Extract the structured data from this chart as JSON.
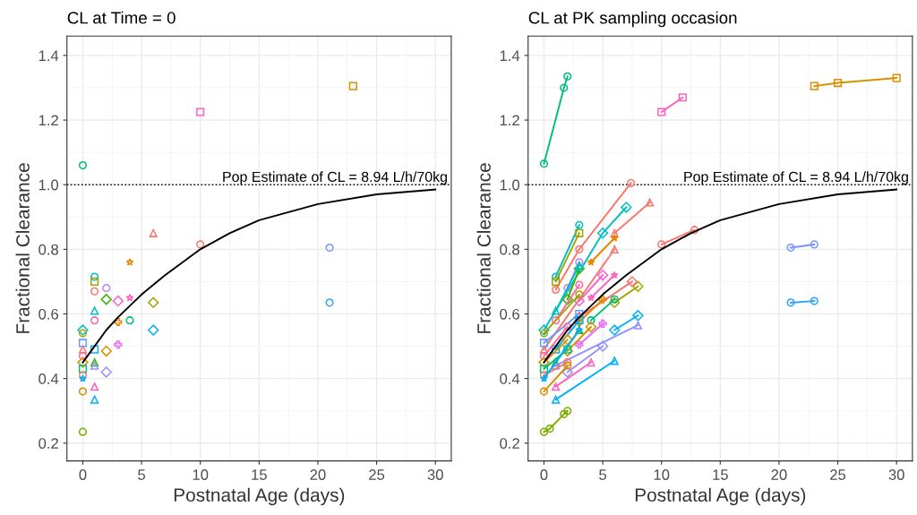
{
  "chart_data": [
    {
      "type": "scatter",
      "title": "CL at Time = 0",
      "xlabel": "Postnatal Age (days)",
      "ylabel": "Fractional Clearance",
      "xlim": [
        -1.35,
        31.35
      ],
      "ylim": [
        0.145,
        1.46
      ],
      "xticks": [
        0,
        5,
        10,
        15,
        20,
        25,
        30
      ],
      "yticks": [
        {
          "value": 0.2,
          "label": "0.2"
        },
        {
          "value": 0.4,
          "label": "0.4"
        },
        {
          "value": 0.6,
          "label": "0.6"
        },
        {
          "value": 0.8,
          "label": "0.8"
        },
        {
          "value": 1.0,
          "label": "1.0"
        },
        {
          "value": 1.2,
          "label": "1.2"
        },
        {
          "value": 1.4,
          "label": "1.4"
        }
      ],
      "grid": true,
      "legend": false,
      "ref_lines": [
        {
          "axis": "y",
          "value": 1.0,
          "color": "#000000",
          "line_style": "dotted"
        }
      ],
      "annotations": [
        "Pop Estimate of CL = 8.94 L/h/70kg"
      ],
      "series": [
        {
          "type": "line",
          "color": "#000000",
          "marker": "none",
          "line_style": "solid",
          "x": [
            0,
            1,
            2,
            3,
            5,
            7,
            10,
            12.5,
            15,
            20,
            25,
            30
          ],
          "values": [
            0.45,
            0.5,
            0.55,
            0.59,
            0.66,
            0.72,
            0.8,
            0.85,
            0.89,
            0.94,
            0.97,
            0.985
          ]
        },
        {
          "color": "#00BF7D",
          "marker": "circle",
          "x": [
            0
          ],
          "values": [
            1.06
          ]
        },
        {
          "color": "#D89000",
          "marker": "square",
          "x": [
            23
          ],
          "values": [
            1.305
          ]
        },
        {
          "color": "#FF62BC",
          "marker": "square",
          "x": [
            10
          ],
          "values": [
            1.225
          ]
        },
        {
          "color": "#F8766D",
          "marker": "triangle",
          "x": [
            6
          ],
          "values": [
            0.85
          ]
        },
        {
          "color": "#F8766D",
          "marker": "circle",
          "x": [
            10
          ],
          "values": [
            0.815
          ]
        },
        {
          "color": "#7997FF",
          "marker": "circle",
          "x": [
            21
          ],
          "values": [
            0.805
          ]
        },
        {
          "color": "#35A2FF",
          "marker": "circle",
          "x": [
            21
          ],
          "values": [
            0.635
          ]
        },
        {
          "color": "#E58700",
          "marker": "star",
          "x": [
            4
          ],
          "values": [
            0.76
          ]
        },
        {
          "color": "#00BFC4",
          "marker": "circle",
          "x": [
            1
          ],
          "values": [
            0.715
          ]
        },
        {
          "color": "#A3A500",
          "marker": "square",
          "x": [
            1
          ],
          "values": [
            0.7
          ]
        },
        {
          "color": "#F8766D",
          "marker": "circle",
          "x": [
            1
          ],
          "values": [
            0.67
          ]
        },
        {
          "color": "#B983FF",
          "marker": "circle",
          "x": [
            2
          ],
          "values": [
            0.68
          ]
        },
        {
          "color": "#39B600",
          "marker": "diamond",
          "x": [
            2
          ],
          "values": [
            0.645
          ]
        },
        {
          "color": "#FF61C3",
          "marker": "star",
          "x": [
            4
          ],
          "values": [
            0.65
          ]
        },
        {
          "color": "#FB61D7",
          "marker": "diamond",
          "x": [
            3
          ],
          "values": [
            0.64
          ]
        },
        {
          "color": "#A3A500",
          "marker": "diamond",
          "x": [
            6
          ],
          "values": [
            0.635
          ]
        },
        {
          "color": "#00BFC4",
          "marker": "triangle",
          "x": [
            1
          ],
          "values": [
            0.61
          ]
        },
        {
          "color": "#FF67A4",
          "marker": "circle",
          "x": [
            1
          ],
          "values": [
            0.58
          ]
        },
        {
          "color": "#00BF7D",
          "marker": "circle",
          "x": [
            4
          ],
          "values": [
            0.58
          ]
        },
        {
          "color": "#E58700",
          "marker": "cross",
          "x": [
            3
          ],
          "values": [
            0.575
          ]
        },
        {
          "color": "#00B0F6",
          "marker": "diamond",
          "x": [
            6
          ],
          "values": [
            0.55
          ]
        },
        {
          "color": "#00BFC4",
          "marker": "diamond",
          "x": [
            0
          ],
          "values": [
            0.55
          ]
        },
        {
          "color": "#A3A500",
          "marker": "circle",
          "x": [
            0
          ],
          "values": [
            0.54
          ]
        },
        {
          "color": "#E76BF3",
          "marker": "cross",
          "x": [
            3
          ],
          "values": [
            0.505
          ]
        },
        {
          "color": "#619CFF",
          "marker": "square",
          "x": [
            0
          ],
          "values": [
            0.51
          ]
        },
        {
          "color": "#F8766D",
          "marker": "triangle",
          "x": [
            0
          ],
          "values": [
            0.49
          ]
        },
        {
          "color": "#00B0F6",
          "marker": "square",
          "x": [
            1
          ],
          "values": [
            0.49
          ]
        },
        {
          "color": "#D89000",
          "marker": "diamond",
          "x": [
            2
          ],
          "values": [
            0.485
          ]
        },
        {
          "color": "#FF67A4",
          "marker": "circle",
          "x": [
            0
          ],
          "values": [
            0.47
          ]
        },
        {
          "color": "#D89000",
          "marker": "diamond",
          "x": [
            0
          ],
          "values": [
            0.45
          ]
        },
        {
          "color": "#39B600",
          "marker": "triangle",
          "x": [
            1
          ],
          "values": [
            0.45
          ]
        },
        {
          "color": "#9590FF",
          "marker": "triangle",
          "x": [
            1
          ],
          "values": [
            0.44
          ]
        },
        {
          "color": "#9590FF",
          "marker": "diamond",
          "x": [
            2
          ],
          "values": [
            0.42
          ]
        },
        {
          "color": "#00BF7D",
          "marker": "square",
          "x": [
            0
          ],
          "values": [
            0.43
          ]
        },
        {
          "color": "#F8766D",
          "marker": "circle",
          "x": [
            0
          ],
          "values": [
            0.41
          ]
        },
        {
          "color": "#00B0F6",
          "marker": "star",
          "x": [
            0
          ],
          "values": [
            0.4
          ]
        },
        {
          "color": "#FF62BC",
          "marker": "triangle",
          "x": [
            1
          ],
          "values": [
            0.375
          ]
        },
        {
          "color": "#D89000",
          "marker": "circle",
          "x": [
            0
          ],
          "values": [
            0.36
          ]
        },
        {
          "color": "#00B0F6",
          "marker": "triangle",
          "x": [
            1
          ],
          "values": [
            0.335
          ]
        },
        {
          "color": "#7CAE00",
          "marker": "circle",
          "x": [
            0
          ],
          "values": [
            0.235
          ]
        }
      ]
    },
    {
      "type": "line",
      "title": "CL at PK sampling occasion",
      "xlabel": "Postnatal Age (days)",
      "ylabel": "Fractional Clearance",
      "xlim": [
        -1.35,
        31.35
      ],
      "ylim": [
        0.145,
        1.46
      ],
      "xticks": [
        0,
        5,
        10,
        15,
        20,
        25,
        30
      ],
      "yticks": [
        {
          "value": 0.2,
          "label": "0.2"
        },
        {
          "value": 0.4,
          "label": "0.4"
        },
        {
          "value": 0.6,
          "label": "0.6"
        },
        {
          "value": 0.8,
          "label": "0.8"
        },
        {
          "value": 1.0,
          "label": "1.0"
        },
        {
          "value": 1.2,
          "label": "1.2"
        },
        {
          "value": 1.4,
          "label": "1.4"
        }
      ],
      "grid": true,
      "legend": false,
      "ref_lines": [
        {
          "axis": "y",
          "value": 1.0,
          "color": "#000000",
          "line_style": "dotted"
        }
      ],
      "annotations": [
        "Pop Estimate of CL = 8.94 L/h/70kg"
      ],
      "series": [
        {
          "color": "#00BF7D",
          "marker": "circle",
          "x": [
            0,
            1.7,
            2
          ],
          "values": [
            1.065,
            1.3,
            1.335
          ]
        },
        {
          "color": "#FF62BC",
          "marker": "square",
          "x": [
            10,
            11.8
          ],
          "values": [
            1.225,
            1.27
          ]
        },
        {
          "color": "#D89000",
          "marker": "square",
          "x": [
            23,
            25,
            30
          ],
          "values": [
            1.305,
            1.315,
            1.33
          ]
        },
        {
          "color": "#F8766D",
          "marker": "circle",
          "x": [
            1,
            3,
            7.4
          ],
          "values": [
            0.675,
            0.8,
            1.005
          ]
        },
        {
          "color": "#F8766D",
          "marker": "triangle",
          "x": [
            6,
            9
          ],
          "values": [
            0.85,
            0.945
          ]
        },
        {
          "color": "#F8766D",
          "marker": "circle",
          "x": [
            10,
            12.8
          ],
          "values": [
            0.815,
            0.86
          ]
        },
        {
          "color": "#7997FF",
          "marker": "circle",
          "x": [
            21,
            23
          ],
          "values": [
            0.805,
            0.815
          ]
        },
        {
          "color": "#35A2FF",
          "marker": "circle",
          "x": [
            21,
            23
          ],
          "values": [
            0.635,
            0.64
          ]
        },
        {
          "color": "#00BFC4",
          "marker": "circle",
          "x": [
            1,
            3
          ],
          "values": [
            0.715,
            0.875
          ]
        },
        {
          "color": "#A3A500",
          "marker": "square",
          "x": [
            1,
            3
          ],
          "values": [
            0.7,
            0.85
          ]
        },
        {
          "color": "#00BFC4",
          "marker": "diamond",
          "x": [
            0,
            5,
            7
          ],
          "values": [
            0.55,
            0.85,
            0.93
          ]
        },
        {
          "color": "#E58700",
          "marker": "star",
          "x": [
            4,
            6
          ],
          "values": [
            0.76,
            0.835
          ]
        },
        {
          "color": "#B983FF",
          "marker": "circle",
          "x": [
            2,
            3
          ],
          "values": [
            0.68,
            0.76
          ]
        },
        {
          "color": "#39B600",
          "marker": "diamond",
          "x": [
            2,
            3
          ],
          "values": [
            0.645,
            0.74
          ]
        },
        {
          "color": "#FF61C3",
          "marker": "star",
          "x": [
            4,
            6
          ],
          "values": [
            0.65,
            0.72
          ]
        },
        {
          "color": "#FB61D7",
          "marker": "diamond",
          "x": [
            3,
            5
          ],
          "values": [
            0.64,
            0.72
          ]
        },
        {
          "color": "#A3A500",
          "marker": "diamond",
          "x": [
            6,
            8
          ],
          "values": [
            0.635,
            0.685
          ]
        },
        {
          "color": "#F8766D",
          "marker": "diamond",
          "x": [
            3,
            7.5
          ],
          "values": [
            0.59,
            0.7
          ]
        },
        {
          "color": "#F8766D",
          "marker": "triangle",
          "x": [
            0,
            6
          ],
          "values": [
            0.49,
            0.8
          ]
        },
        {
          "color": "#00BFC4",
          "marker": "triangle",
          "x": [
            1,
            3
          ],
          "values": [
            0.61,
            0.75
          ]
        },
        {
          "color": "#FF67A4",
          "marker": "circle",
          "x": [
            1,
            3
          ],
          "values": [
            0.58,
            0.69
          ]
        },
        {
          "color": "#00BF7D",
          "marker": "circle",
          "x": [
            4,
            6
          ],
          "values": [
            0.58,
            0.645
          ]
        },
        {
          "color": "#E58700",
          "marker": "cross",
          "x": [
            3,
            5
          ],
          "values": [
            0.575,
            0.645
          ]
        },
        {
          "color": "#00B0F6",
          "marker": "diamond",
          "x": [
            6,
            8
          ],
          "values": [
            0.55,
            0.595
          ]
        },
        {
          "color": "#E76BF3",
          "marker": "cross",
          "x": [
            3,
            5
          ],
          "values": [
            0.505,
            0.57
          ]
        },
        {
          "color": "#A3A500",
          "marker": "circle",
          "x": [
            0,
            3
          ],
          "values": [
            0.54,
            0.66
          ]
        },
        {
          "color": "#619CFF",
          "marker": "square",
          "x": [
            0,
            3
          ],
          "values": [
            0.51,
            0.6
          ]
        },
        {
          "color": "#00B0F6",
          "marker": "square",
          "x": [
            1,
            3
          ],
          "values": [
            0.49,
            0.58
          ]
        },
        {
          "color": "#D89000",
          "marker": "diamond",
          "x": [
            2,
            4
          ],
          "values": [
            0.485,
            0.56
          ]
        },
        {
          "color": "#FF67A4",
          "marker": "circle",
          "x": [
            0,
            2
          ],
          "values": [
            0.47,
            0.56
          ]
        },
        {
          "color": "#D89000",
          "marker": "diamond",
          "x": [
            0,
            2
          ],
          "values": [
            0.45,
            0.52
          ]
        },
        {
          "color": "#39B600",
          "marker": "triangle",
          "x": [
            1,
            3
          ],
          "values": [
            0.45,
            0.55
          ]
        },
        {
          "color": "#9590FF",
          "marker": "triangle",
          "x": [
            1,
            8
          ],
          "values": [
            0.44,
            0.565
          ]
        },
        {
          "color": "#9590FF",
          "marker": "diamond",
          "x": [
            2,
            5
          ],
          "values": [
            0.42,
            0.5
          ]
        },
        {
          "color": "#00BF7D",
          "marker": "square",
          "x": [
            0,
            2
          ],
          "values": [
            0.43,
            0.49
          ]
        },
        {
          "color": "#F8766D",
          "marker": "circle",
          "x": [
            0,
            2
          ],
          "values": [
            0.41,
            0.45
          ]
        },
        {
          "color": "#00B0F6",
          "marker": "star",
          "x": [
            0,
            3
          ],
          "values": [
            0.4,
            0.55
          ]
        },
        {
          "color": "#FF62BC",
          "marker": "triangle",
          "x": [
            1,
            4
          ],
          "values": [
            0.375,
            0.45
          ]
        },
        {
          "color": "#D89000",
          "marker": "circle",
          "x": [
            0,
            2
          ],
          "values": [
            0.36,
            0.44
          ]
        },
        {
          "color": "#00B0F6",
          "marker": "triangle",
          "x": [
            1,
            6
          ],
          "values": [
            0.335,
            0.455
          ]
        },
        {
          "color": "#7CAE00",
          "marker": "circle",
          "x": [
            0,
            0.5,
            1.7,
            2
          ],
          "values": [
            0.235,
            0.245,
            0.29,
            0.3
          ]
        },
        {
          "color": "#000000",
          "marker": "none",
          "line_style": "solid",
          "x": [
            0,
            1,
            2,
            3,
            5,
            7,
            10,
            12.5,
            15,
            20,
            25,
            30
          ],
          "values": [
            0.45,
            0.5,
            0.55,
            0.59,
            0.66,
            0.72,
            0.8,
            0.85,
            0.89,
            0.94,
            0.97,
            0.985
          ]
        }
      ]
    }
  ]
}
